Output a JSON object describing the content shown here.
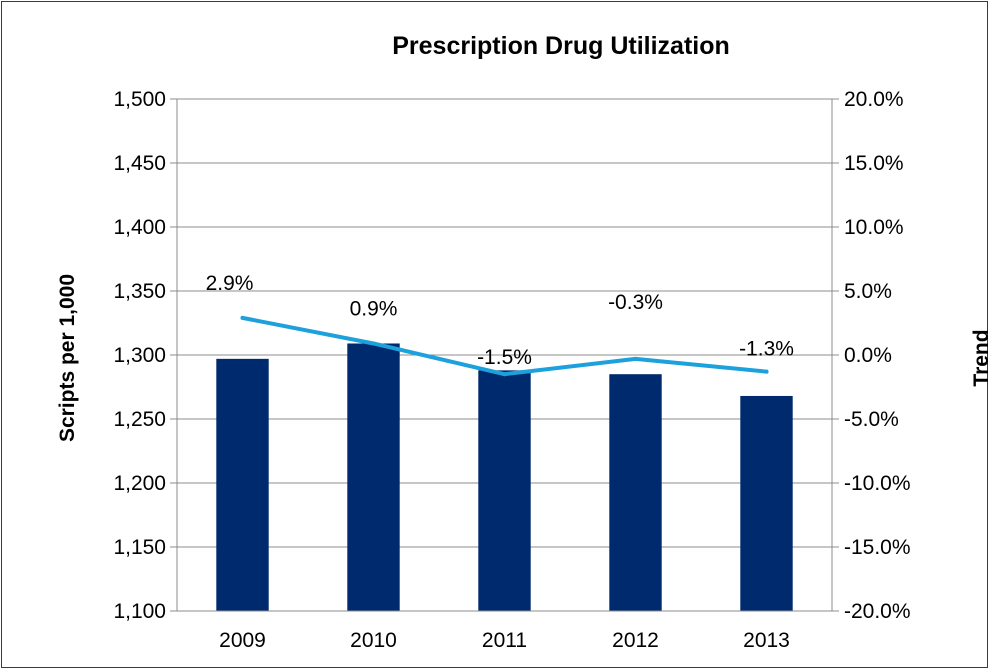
{
  "chart_data": {
    "type": "bar",
    "title": "Prescription Drug Utilization",
    "ylabel": "Scripts per 1,000",
    "y2label": "Trend",
    "categories": [
      "2009",
      "2010",
      "2011",
      "2012",
      "2013"
    ],
    "ylim": [
      1100,
      1500
    ],
    "y2lim": [
      -20,
      20
    ],
    "yticks": [
      "1,100",
      "1,150",
      "1,200",
      "1,250",
      "1,300",
      "1,350",
      "1,400",
      "1,450",
      "1,500"
    ],
    "y2ticks": [
      "-20.0%",
      "-15.0%",
      "-10.0%",
      "-5.0%",
      "0.0%",
      "5.0%",
      "10.0%",
      "15.0%",
      "20.0%"
    ],
    "grid": true,
    "series": [
      {
        "type": "bar",
        "axis": "left",
        "color": "#002a6e",
        "values": [
          1297,
          1309,
          1288,
          1285,
          1268
        ]
      },
      {
        "type": "line",
        "axis": "right",
        "color": "#1da1dc",
        "values": [
          2.9,
          0.9,
          -1.5,
          -0.3,
          -1.3
        ],
        "labels": [
          "2.9%",
          "0.9%",
          "-1.5%",
          "-0.3%",
          "-1.3%"
        ]
      }
    ]
  }
}
